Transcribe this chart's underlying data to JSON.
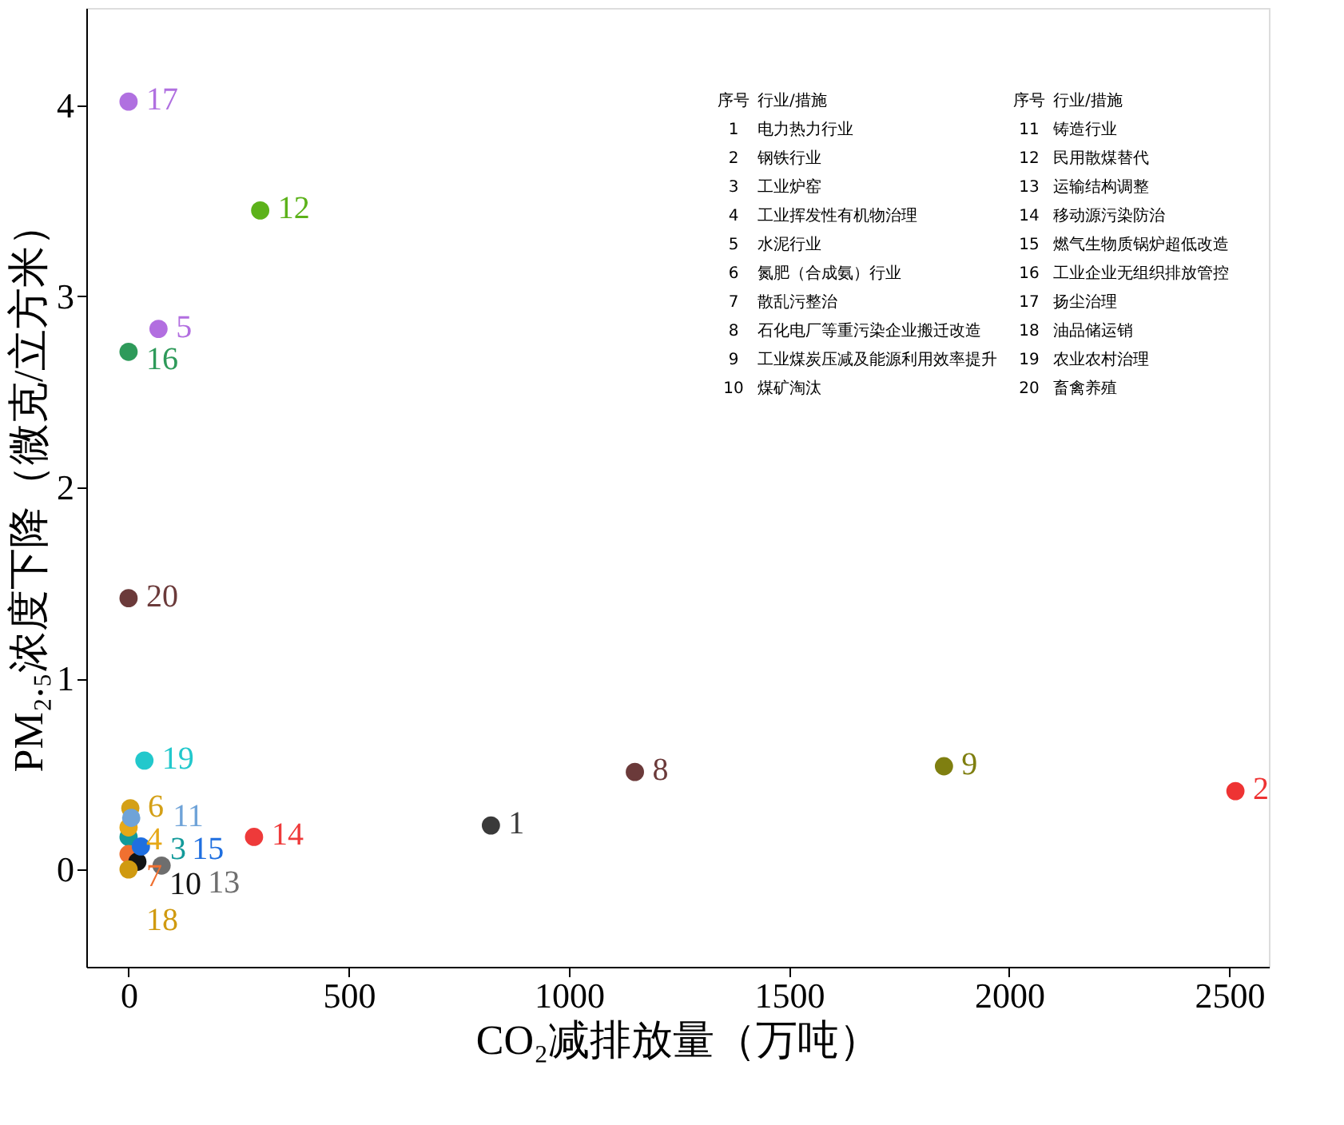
{
  "chart_data": {
    "type": "scatter",
    "xlabel": "CO₂减排放量（万吨）",
    "ylabel": "PM₂.₅浓度下降（微克/立方米）",
    "xlim": [
      -96,
      2590
    ],
    "ylim": [
      -0.51,
      4.51
    ],
    "xticks": [
      0,
      500,
      1000,
      1500,
      2000,
      2500
    ],
    "yticks": [
      0,
      1,
      2,
      3,
      4
    ],
    "grid": false,
    "legend": false,
    "marker": "circle",
    "series": [
      {
        "name": "1",
        "color": "#3a3a3a",
        "x": [
          823
        ],
        "values": [
          0.23
        ]
      },
      {
        "name": "2",
        "color": "#ee3333",
        "x": [
          2514
        ],
        "values": [
          0.41
        ]
      },
      {
        "name": "3",
        "color": "#139a9a",
        "x": [
          0
        ],
        "values": [
          0.17
        ]
      },
      {
        "name": "4",
        "color": "#e6a817",
        "x": [
          0
        ],
        "values": [
          0.22
        ]
      },
      {
        "name": "5",
        "color": "#b26ee0",
        "x": [
          68
        ],
        "values": [
          2.83
        ]
      },
      {
        "name": "6",
        "color": "#d4a017",
        "x": [
          4
        ],
        "values": [
          0.32
        ]
      },
      {
        "name": "7",
        "color": "#f07030",
        "x": [
          0
        ],
        "values": [
          0.08
        ]
      },
      {
        "name": "8",
        "color": "#6b3a3a",
        "x": [
          1150
        ],
        "values": [
          0.51
        ]
      },
      {
        "name": "9",
        "color": "#7f7f10",
        "x": [
          1852
        ],
        "values": [
          0.54
        ]
      },
      {
        "name": "10",
        "color": "#141414",
        "x": [
          20
        ],
        "values": [
          0.04
        ]
      },
      {
        "name": "11",
        "color": "#6fa3d8",
        "x": [
          6
        ],
        "values": [
          0.27
        ]
      },
      {
        "name": "12",
        "color": "#5cb21a",
        "x": [
          299
        ],
        "values": [
          3.45
        ]
      },
      {
        "name": "13",
        "color": "#6e6e6e",
        "x": [
          75
        ],
        "values": [
          0.02
        ]
      },
      {
        "name": "14",
        "color": "#ee3a3a",
        "x": [
          285
        ],
        "values": [
          0.17
        ]
      },
      {
        "name": "15",
        "color": "#1f6fe0",
        "x": [
          28
        ],
        "values": [
          0.12
        ]
      },
      {
        "name": "16",
        "color": "#2e9a5a",
        "x": [
          0
        ],
        "values": [
          2.71
        ]
      },
      {
        "name": "17",
        "color": "#b070e0",
        "x": [
          0
        ],
        "values": [
          4.02
        ]
      },
      {
        "name": "18",
        "color": "#d09a10",
        "x": [
          0
        ],
        "values": [
          0.0
        ]
      },
      {
        "name": "19",
        "color": "#22c8cc",
        "x": [
          36
        ],
        "values": [
          0.57
        ]
      },
      {
        "name": "20",
        "color": "#6b3a3a",
        "x": [
          0
        ],
        "values": [
          1.42
        ]
      }
    ],
    "annotations": [
      "序号",
      "行业/措施",
      "序号",
      "行业/措施",
      "1",
      "电力热力行业",
      "11",
      "铸造行业",
      "2",
      "钢铁行业",
      "12",
      "民用散煤替代",
      "3",
      "工业炉窑",
      "13",
      "运输结构调整",
      "4",
      "工业挥发性有机物治理",
      "14",
      "移动源污染防治",
      "5",
      "水泥行业",
      "15",
      "燃气生物质锅炉超低改造",
      "6",
      "氮肥（合成氨）行业",
      "16",
      "工业企业无组织排放管控",
      "7",
      "散乱污整治",
      "17",
      "扬尘治理",
      "8",
      "石化电厂等重污染企业搬迁改造",
      "18",
      "油品储运销",
      "9",
      "工业煤炭压减及能源利用效率提升",
      "19",
      "农业农村治理",
      "10",
      "煤矿淘汰",
      "20",
      "畜禽养殖"
    ]
  }
}
